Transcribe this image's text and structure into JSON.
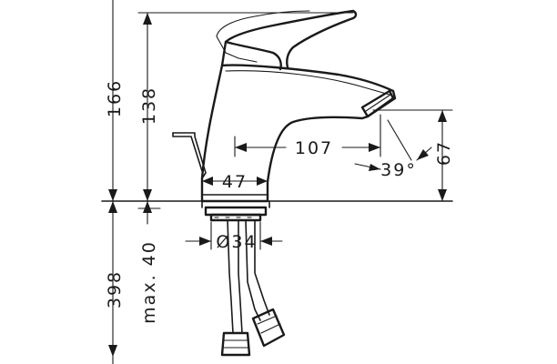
{
  "dimensions": {
    "total_height": "166",
    "spout_height": "138",
    "spout_reach": "107",
    "base_width": "47",
    "spout_to_aerator": "67",
    "spout_angle": "39°",
    "hole_diameter": "Ø34",
    "max_thickness": "max. 40",
    "hose_length": "398"
  }
}
